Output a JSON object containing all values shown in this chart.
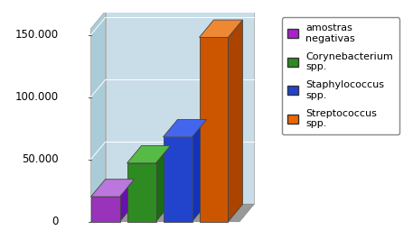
{
  "values": [
    20000,
    47000,
    68000,
    148000
  ],
  "bar_colors_front": [
    "#9933BB",
    "#2E8B22",
    "#2244CC",
    "#CC5500"
  ],
  "bar_colors_top": [
    "#BB77DD",
    "#55BB44",
    "#4466EE",
    "#EE8833"
  ],
  "bar_colors_side": [
    "#6611AA",
    "#1A6B11",
    "#1133BB",
    "#AA4400"
  ],
  "legend_colors": [
    "#AA22CC",
    "#2E8B22",
    "#2244CC",
    "#EE6600"
  ],
  "legend_labels": [
    "amostras\nnegativas",
    "Corynebacterium\nspp.",
    "Staphylococcus\nspp.",
    "Streptococcus\nspp."
  ],
  "yticks": [
    0,
    50000,
    100000,
    150000
  ],
  "ytick_labels": [
    "0",
    "50.000",
    "100.000",
    "150.000"
  ],
  "wall_back_color": "#c5dde8",
  "wall_left_color": "#a8ccd8",
  "floor_color": "#9a9a9a",
  "fig_bg": "#ffffff",
  "plot_bg": "#ffffff"
}
